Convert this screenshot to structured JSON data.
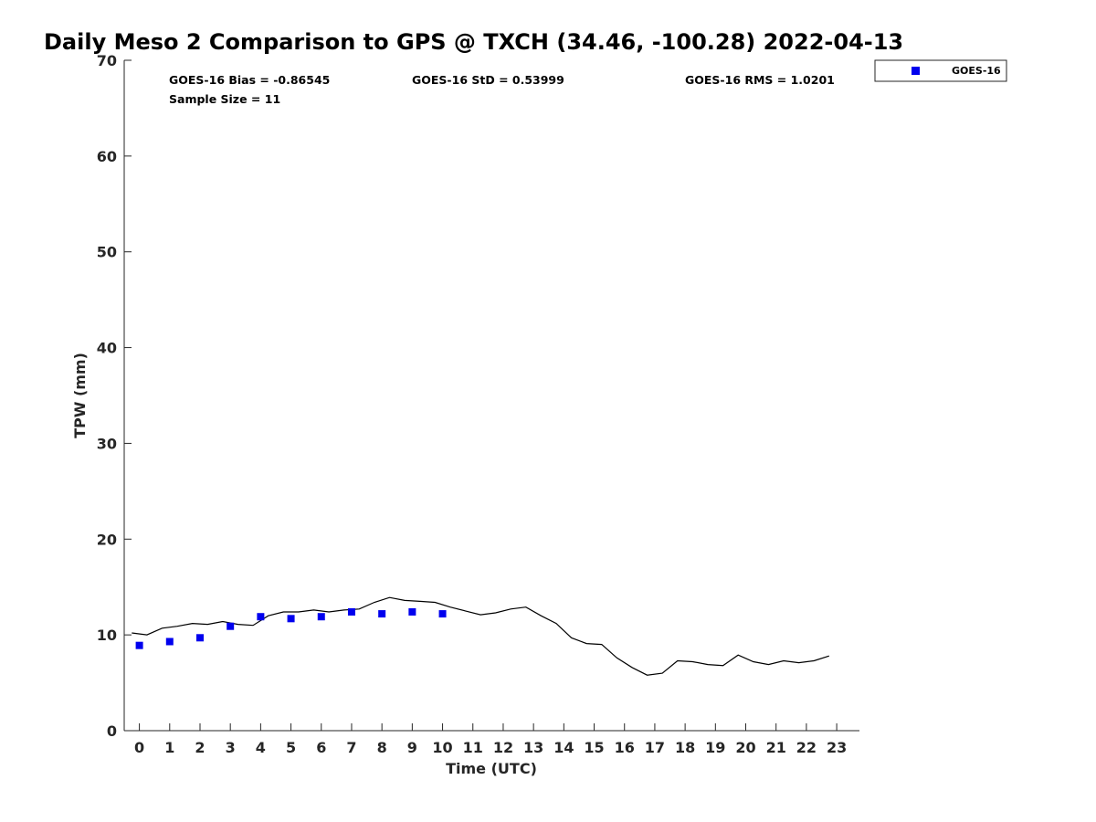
{
  "chart_data": {
    "type": "scatter",
    "title": "Daily Meso 2 Comparison to GPS @ TXCH (34.46, -100.28) 2022-04-13",
    "xlabel": "Time (UTC)",
    "ylabel": "TPW (mm)",
    "xlim": [
      -0.5,
      23.75
    ],
    "ylim": [
      0,
      70
    ],
    "x_ticks": [
      0,
      1,
      2,
      3,
      4,
      5,
      6,
      7,
      8,
      9,
      10,
      11,
      12,
      13,
      14,
      15,
      16,
      17,
      18,
      19,
      20,
      21,
      22,
      23
    ],
    "x_tick_labels": [
      "0",
      "1",
      "2",
      "3",
      "4",
      "5",
      "6",
      "7",
      "8",
      "9",
      "10",
      "11",
      "12",
      "13",
      "14",
      "15",
      "16",
      "17",
      "18",
      "19",
      "20",
      "21",
      "22",
      "23"
    ],
    "y_ticks": [
      0,
      10,
      20,
      30,
      40,
      50,
      60,
      70
    ],
    "y_tick_labels": [
      "0",
      "10",
      "20",
      "30",
      "40",
      "50",
      "60",
      "70"
    ],
    "grid": false,
    "legend_position": "top-right outside",
    "stats": [
      "GOES-16 Bias = -0.86545",
      "GOES-16 StD = 0.53999",
      "GOES-16 RMS = 1.0201",
      "Sample Size = 11"
    ],
    "series": [
      {
        "name": "GOES-16",
        "kind": "scatter",
        "marker": "square",
        "color": "#0000ee",
        "x": [
          0,
          1,
          2,
          3,
          4,
          5,
          6,
          7,
          8,
          9,
          10
        ],
        "y": [
          8.9,
          9.3,
          9.7,
          10.9,
          11.9,
          11.7,
          11.9,
          12.4,
          12.2,
          12.4,
          12.2
        ]
      },
      {
        "kind": "line",
        "color": "#000000",
        "x": [
          -0.25,
          0.25,
          0.75,
          1.25,
          1.75,
          2.25,
          2.75,
          3.25,
          3.75,
          4.25,
          4.75,
          5.25,
          5.75,
          6.25,
          6.75,
          7.25,
          7.75,
          8.25,
          8.75,
          9.25,
          9.75,
          10.25,
          10.75,
          11.25,
          11.75,
          12.25,
          12.75,
          13.25,
          13.75,
          14.25,
          14.75,
          15.25,
          15.75,
          16.25,
          16.75,
          17.25,
          17.75,
          18.25,
          18.75,
          19.25,
          19.75,
          20.25,
          20.75,
          21.25,
          21.75,
          22.25,
          22.75
        ],
        "y": [
          10.2,
          10.0,
          10.7,
          10.9,
          11.2,
          11.1,
          11.4,
          11.1,
          11.0,
          12.0,
          12.4,
          12.4,
          12.6,
          12.4,
          12.6,
          12.7,
          13.4,
          13.9,
          13.6,
          13.5,
          13.4,
          12.9,
          12.5,
          12.1,
          12.3,
          12.7,
          12.9,
          12.0,
          11.2,
          9.7,
          9.1,
          9.0,
          7.6,
          6.6,
          5.8,
          6.0,
          7.3,
          7.2,
          6.9,
          6.8,
          7.9,
          7.2,
          6.9,
          7.3,
          7.1,
          7.3,
          7.8
        ]
      }
    ]
  }
}
